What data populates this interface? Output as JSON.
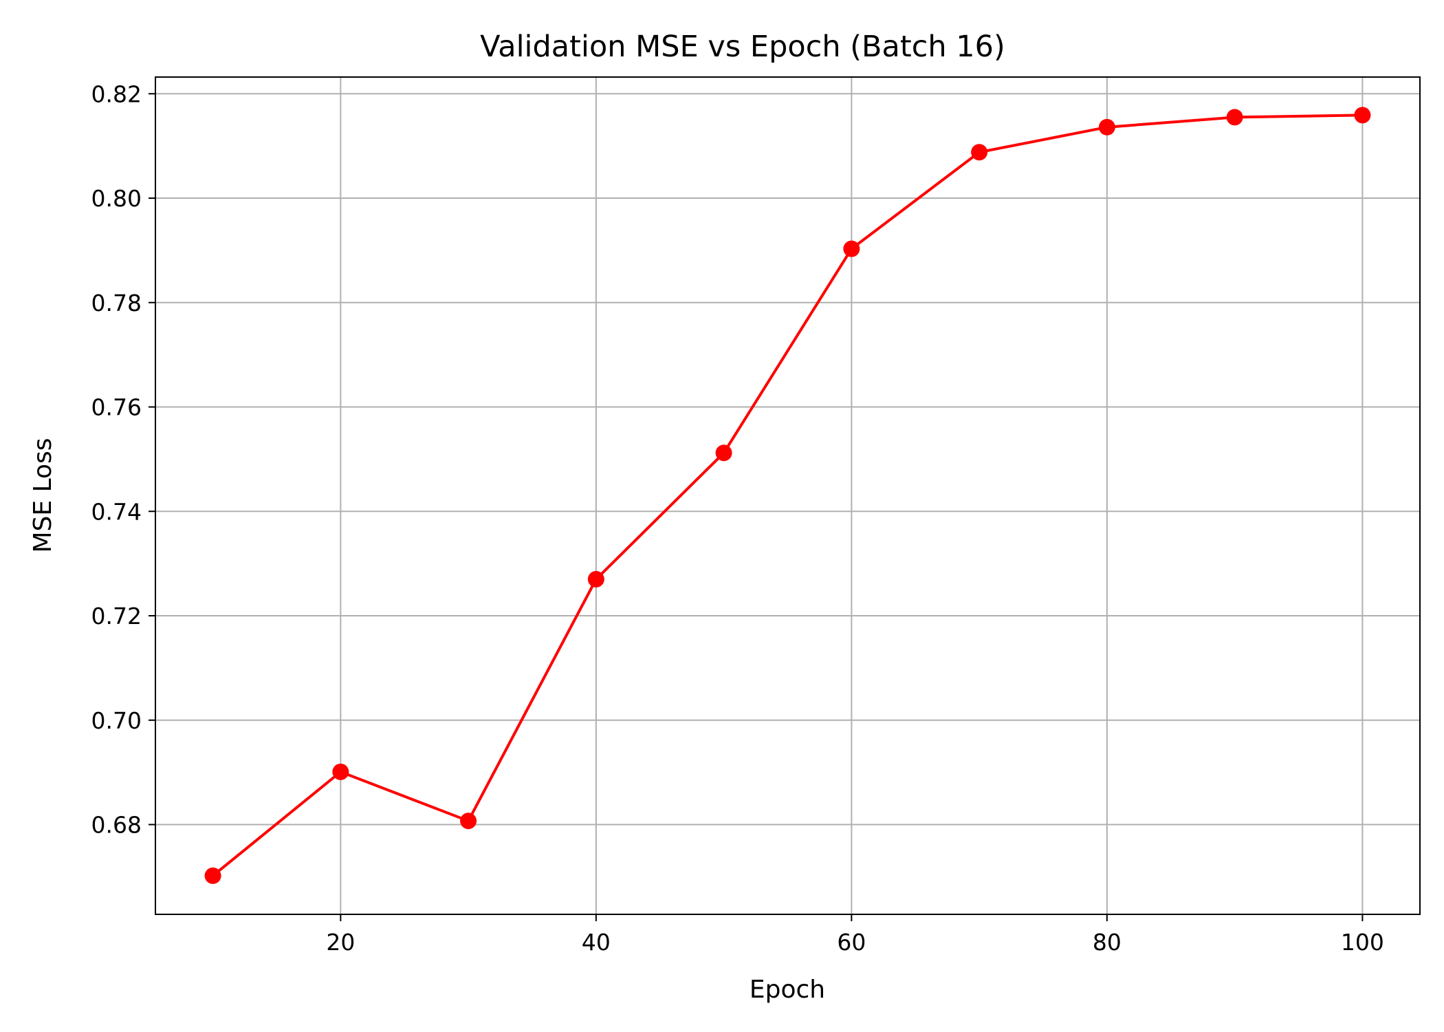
{
  "chart_data": {
    "type": "line",
    "title": "Validation MSE vs Epoch (Batch 16)",
    "xlabel": "Epoch",
    "ylabel": "MSE Loss",
    "xlim": [
      5.5,
      104.5
    ],
    "ylim": [
      0.6628,
      0.8232
    ],
    "xticks": [
      20,
      40,
      60,
      80,
      100
    ],
    "xtick_labels": [
      "20",
      "40",
      "60",
      "80",
      "100"
    ],
    "yticks": [
      0.68,
      0.7,
      0.72,
      0.74,
      0.76,
      0.78,
      0.8,
      0.82
    ],
    "ytick_labels": [
      "0.68",
      "0.70",
      "0.72",
      "0.74",
      "0.76",
      "0.78",
      "0.80",
      "0.82"
    ],
    "grid": true,
    "series": [
      {
        "color": "#ff0000",
        "marker": "circle",
        "x": [
          10,
          20,
          30,
          40,
          50,
          60,
          70,
          80,
          90,
          100
        ],
        "y": [
          0.6702,
          0.6901,
          0.6807,
          0.727,
          0.7512,
          0.7903,
          0.8088,
          0.8136,
          0.8155,
          0.8159
        ]
      }
    ]
  }
}
